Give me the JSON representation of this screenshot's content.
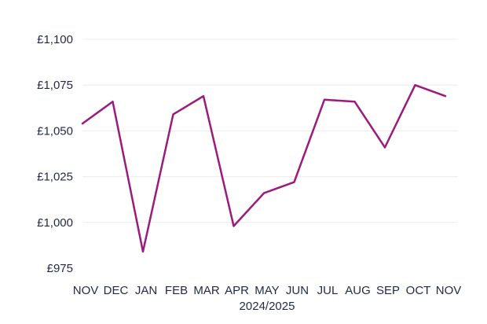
{
  "chart_data": {
    "type": "line",
    "categories": [
      "NOV",
      "DEC",
      "JAN",
      "FEB",
      "MAR",
      "APR",
      "MAY",
      "JUN",
      "JUL",
      "AUG",
      "SEP",
      "OCT",
      "NOV"
    ],
    "series": [
      {
        "values": [
          1054,
          1066,
          984,
          1059,
          1069,
          998,
          1016,
          1022,
          1067,
          1066,
          1041,
          1075,
          1069
        ]
      }
    ],
    "xlabel": "2024/2025",
    "ylabel": "",
    "title": "",
    "ylim": [
      975,
      1100
    ],
    "yticks": [
      975,
      1000,
      1025,
      1050,
      1075,
      1100
    ],
    "ytick_labels": [
      "£975",
      "£1,000",
      "£1,025",
      "£1,050",
      "£1,075",
      "£1,100"
    ],
    "grid": true,
    "line_color": "#9c1a7d"
  }
}
